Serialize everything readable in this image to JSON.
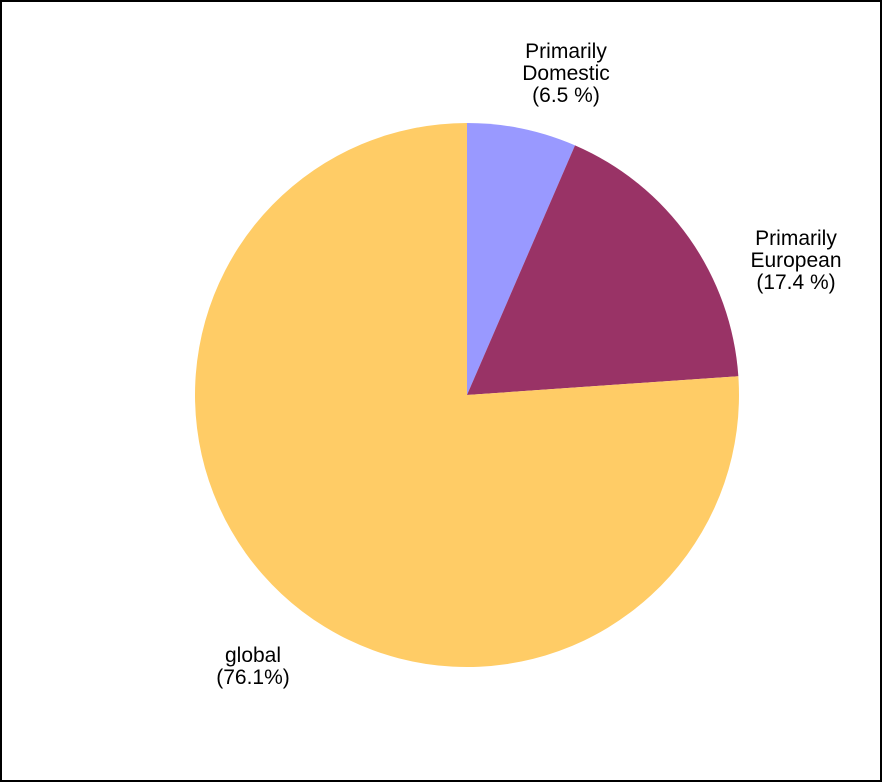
{
  "chart_data": {
    "type": "pie",
    "title": "",
    "start_angle_deg": 0,
    "direction": "clockwise",
    "slices": [
      {
        "name": "Primarily Domestic",
        "label_lines": [
          "Primarily",
          "Domestic",
          "(6.5 %)"
        ],
        "value": 6.5,
        "color": "#9999ff"
      },
      {
        "name": "Primarily European",
        "label_lines": [
          "Primarily",
          "European",
          "(17.4 %)"
        ],
        "value": 17.4,
        "color": "#993366"
      },
      {
        "name": "global",
        "label_lines": [
          "global",
          "(76.1%)"
        ],
        "value": 76.1,
        "color": "#ffcc66"
      }
    ]
  }
}
